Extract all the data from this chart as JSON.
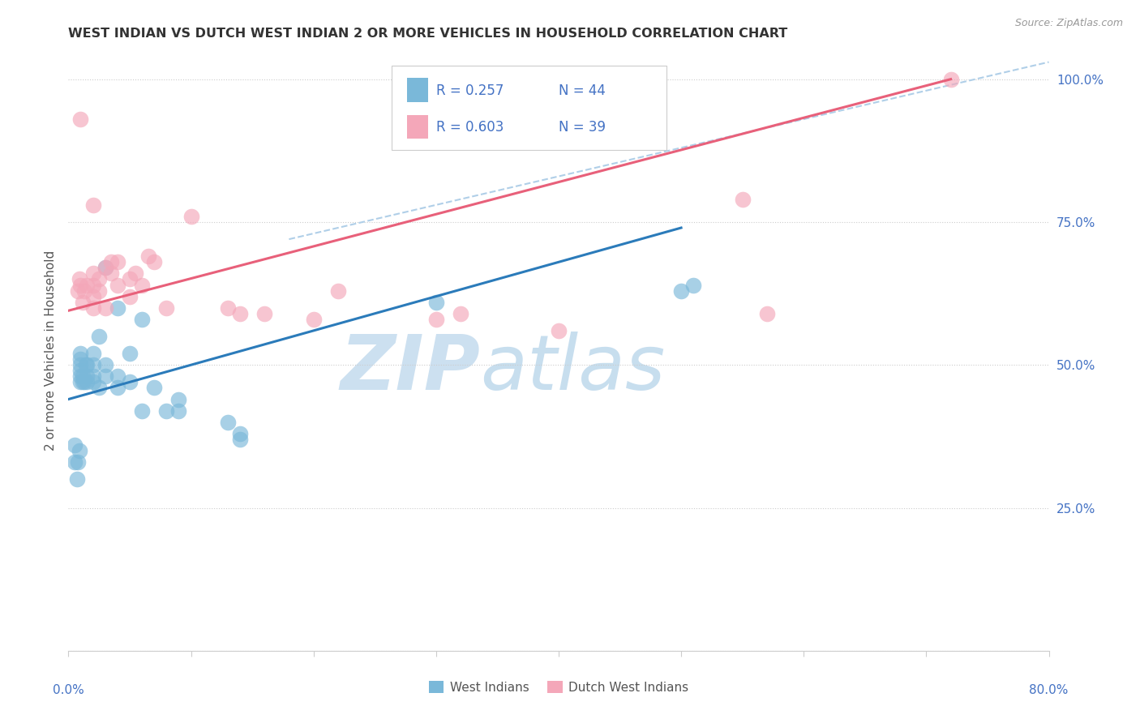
{
  "title": "WEST INDIAN VS DUTCH WEST INDIAN 2 OR MORE VEHICLES IN HOUSEHOLD CORRELATION CHART",
  "source": "Source: ZipAtlas.com",
  "ylabel": "2 or more Vehicles in Household",
  "xmin": 0.0,
  "xmax": 0.8,
  "ymin": 0.0,
  "ymax": 1.05,
  "legend_r1": "R = 0.257",
  "legend_n1": "N = 44",
  "legend_r2": "R = 0.603",
  "legend_n2": "N = 39",
  "legend_label1": "West Indians",
  "legend_label2": "Dutch West Indians",
  "blue_color": "#7ab8d9",
  "pink_color": "#f4a7b9",
  "blue_line_color": "#2b7bba",
  "pink_line_color": "#e8607a",
  "ref_line_color": "#b0cfe8",
  "blue_line_x0": 0.0,
  "blue_line_y0": 0.44,
  "blue_line_x1": 0.5,
  "blue_line_y1": 0.74,
  "pink_line_x0": 0.0,
  "pink_line_y0": 0.595,
  "pink_line_x1": 0.72,
  "pink_line_y1": 1.0,
  "ref_line_x0": 0.18,
  "ref_line_y0": 0.72,
  "ref_line_x1": 0.8,
  "ref_line_y1": 1.03,
  "west_indian_x": [
    0.005,
    0.005,
    0.007,
    0.008,
    0.009,
    0.01,
    0.01,
    0.01,
    0.01,
    0.01,
    0.01,
    0.012,
    0.012,
    0.013,
    0.014,
    0.015,
    0.015,
    0.015,
    0.02,
    0.02,
    0.02,
    0.02,
    0.025,
    0.025,
    0.03,
    0.03,
    0.03,
    0.04,
    0.04,
    0.04,
    0.05,
    0.05,
    0.06,
    0.06,
    0.07,
    0.08,
    0.09,
    0.09,
    0.13,
    0.14,
    0.14,
    0.3,
    0.5,
    0.51
  ],
  "west_indian_y": [
    0.33,
    0.36,
    0.3,
    0.33,
    0.35,
    0.47,
    0.48,
    0.49,
    0.5,
    0.51,
    0.52,
    0.47,
    0.48,
    0.47,
    0.5,
    0.47,
    0.48,
    0.5,
    0.47,
    0.48,
    0.5,
    0.52,
    0.46,
    0.55,
    0.48,
    0.5,
    0.67,
    0.46,
    0.48,
    0.6,
    0.47,
    0.52,
    0.42,
    0.58,
    0.46,
    0.42,
    0.42,
    0.44,
    0.4,
    0.37,
    0.38,
    0.61,
    0.63,
    0.64
  ],
  "dutch_west_indian_x": [
    0.008,
    0.009,
    0.01,
    0.012,
    0.013,
    0.015,
    0.02,
    0.02,
    0.02,
    0.02,
    0.025,
    0.025,
    0.03,
    0.03,
    0.035,
    0.035,
    0.04,
    0.04,
    0.05,
    0.05,
    0.055,
    0.06,
    0.065,
    0.07,
    0.08,
    0.1,
    0.13,
    0.14,
    0.16,
    0.2,
    0.22,
    0.3,
    0.32,
    0.4,
    0.55,
    0.57,
    0.72,
    0.01,
    0.02
  ],
  "dutch_west_indian_y": [
    0.63,
    0.65,
    0.64,
    0.61,
    0.63,
    0.64,
    0.6,
    0.62,
    0.64,
    0.66,
    0.63,
    0.65,
    0.6,
    0.67,
    0.66,
    0.68,
    0.64,
    0.68,
    0.62,
    0.65,
    0.66,
    0.64,
    0.69,
    0.68,
    0.6,
    0.76,
    0.6,
    0.59,
    0.59,
    0.58,
    0.63,
    0.58,
    0.59,
    0.56,
    0.79,
    0.59,
    1.0,
    0.93,
    0.78
  ]
}
